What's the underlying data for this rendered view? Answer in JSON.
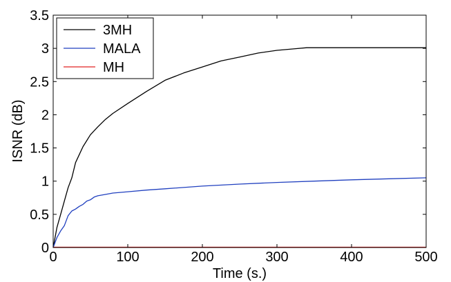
{
  "chart_data": {
    "type": "line",
    "xlabel": "Time (s.)",
    "ylabel": "ISNR (dB)",
    "xlim": [
      0,
      500
    ],
    "ylim": [
      0,
      3.5
    ],
    "xticks": [
      0,
      100,
      200,
      300,
      400,
      500
    ],
    "yticks": [
      0,
      0.5,
      1,
      1.5,
      2,
      2.5,
      3,
      3.5
    ],
    "xtick_labels": [
      "0",
      "100",
      "200",
      "300",
      "400",
      "500"
    ],
    "ytick_labels": [
      "0",
      "0.5",
      "1",
      "1.5",
      "2",
      "2.5",
      "3",
      "3.5"
    ],
    "grid": false,
    "legend_position": "top-left",
    "series": [
      {
        "name": "3MH",
        "color": "#000000",
        "x": [
          0,
          5,
          10,
          15,
          20,
          25,
          30,
          35,
          40,
          50,
          60,
          70,
          80,
          100,
          125,
          150,
          175,
          200,
          225,
          250,
          275,
          300,
          325,
          340,
          360,
          400,
          450,
          500
        ],
        "y": [
          0,
          0.3,
          0.5,
          0.7,
          0.9,
          1.05,
          1.28,
          1.4,
          1.52,
          1.7,
          1.82,
          1.93,
          2.02,
          2.17,
          2.35,
          2.52,
          2.63,
          2.72,
          2.81,
          2.87,
          2.93,
          2.97,
          2.995,
          3.01,
          3.01,
          3.01,
          3.01,
          3.01
        ]
      },
      {
        "name": "MALA",
        "color": "#1f3fbf",
        "x": [
          0,
          5,
          10,
          15,
          20,
          25,
          30,
          35,
          40,
          45,
          50,
          55,
          60,
          70,
          80,
          100,
          125,
          150,
          200,
          250,
          300,
          350,
          400,
          450,
          500
        ],
        "y": [
          0,
          0.15,
          0.25,
          0.33,
          0.48,
          0.55,
          0.58,
          0.62,
          0.65,
          0.7,
          0.72,
          0.76,
          0.78,
          0.8,
          0.82,
          0.84,
          0.865,
          0.885,
          0.925,
          0.955,
          0.98,
          1.0,
          1.02,
          1.035,
          1.05
        ]
      },
      {
        "name": "MH",
        "color": "#e02020",
        "x": [
          0,
          100,
          200,
          300,
          400,
          500
        ],
        "y": [
          0.005,
          0.005,
          0.005,
          0.005,
          0.005,
          0.005
        ]
      }
    ]
  }
}
